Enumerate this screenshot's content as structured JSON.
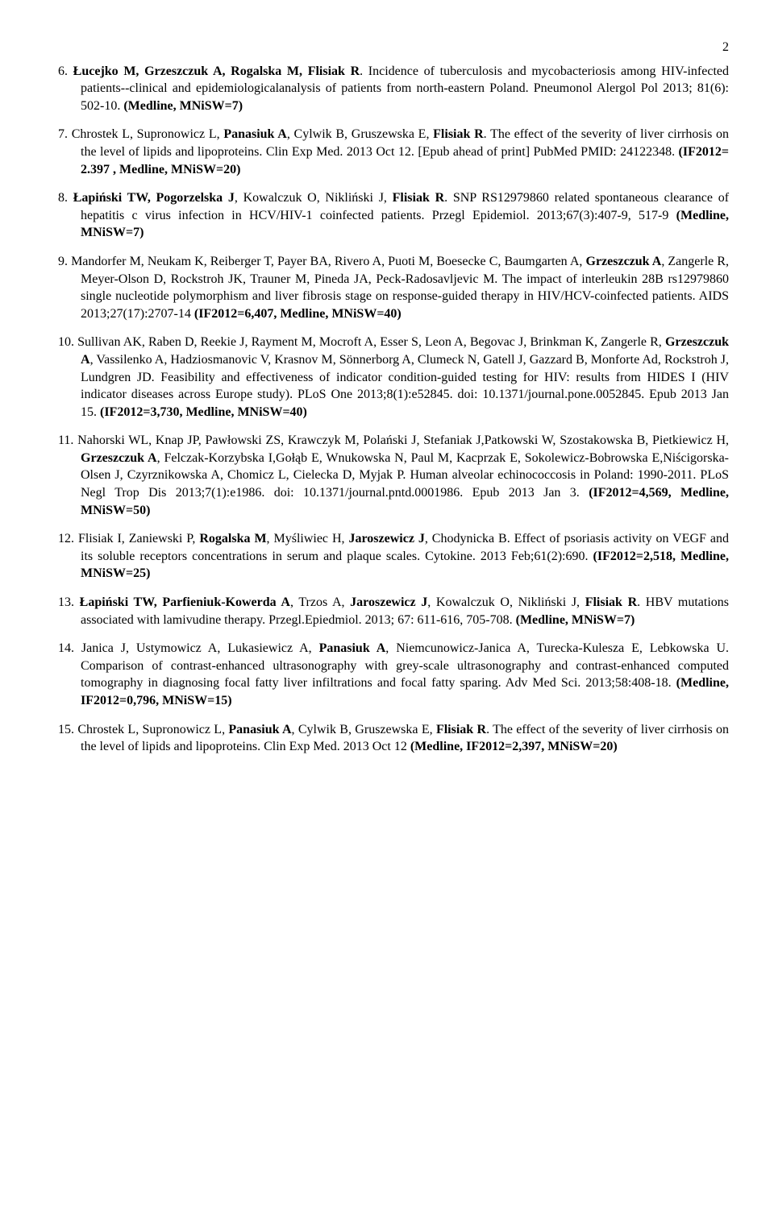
{
  "page_number": "2",
  "references": [
    {
      "num": "6.",
      "segments": [
        {
          "t": "Łucejko M, Grzeszczuk A, Rogalska M, Flisiak R",
          "b": true
        },
        {
          "t": ". Incidence of tuberculosis and mycobacteriosis among HIV-infected patients--clinical and epidemiologicalanalysis of patients from north-eastern Poland. Pneumonol Alergol Pol 2013; 81(6): 502-10. "
        },
        {
          "t": "(Medline, MNiSW=7)",
          "b": true
        }
      ]
    },
    {
      "num": "7.",
      "segments": [
        {
          "t": "Chrostek L, Supronowicz L, "
        },
        {
          "t": "Panasiuk A",
          "b": true
        },
        {
          "t": ", Cylwik B, Gruszewska E, "
        },
        {
          "t": "Flisiak R",
          "b": true
        },
        {
          "t": ". The effect of the severity of liver cirrhosis on the level of lipids and lipoproteins. Clin Exp Med. 2013 Oct 12. [Epub ahead of print] PubMed PMID: 24122348. "
        },
        {
          "t": "(IF2012= 2.397 , Medline, MNiSW=20)",
          "b": true
        }
      ]
    },
    {
      "num": "8.",
      "segments": [
        {
          "t": "Łapiński TW, Pogorzelska J",
          "b": true
        },
        {
          "t": ", Kowalczuk O, Nikliński J, "
        },
        {
          "t": "Flisiak R",
          "b": true
        },
        {
          "t": ". SNP RS12979860 related spontaneous clearance of hepatitis c virus infection in HCV/HIV-1 coinfected patients. Przegl Epidemiol. 2013;67(3):407-9, 517-9 "
        },
        {
          "t": "(Medline, MNiSW=7)",
          "b": true
        }
      ]
    },
    {
      "num": "9.",
      "segments": [
        {
          "t": "Mandorfer M, Neukam K, Reiberger T, Payer BA, Rivero A, Puoti M, Boesecke C, Baumgarten A, "
        },
        {
          "t": "Grzeszczuk A",
          "b": true
        },
        {
          "t": ", Zangerle R, Meyer-Olson D, Rockstroh JK, Trauner M, Pineda JA, Peck-Radosavljevic M. The impact of interleukin 28B rs12979860 single nucleotide polymorphism and liver fibrosis stage on response-guided therapy in HIV/HCV-coinfected patients. AIDS 2013;27(17):2707-14 "
        },
        {
          "t": "(IF2012=6,407, Medline, MNiSW=40)",
          "b": true
        }
      ]
    },
    {
      "num": "10.",
      "segments": [
        {
          "t": "Sullivan AK, Raben D, Reekie J, Rayment M, Mocroft A, Esser S, Leon A, Begovac J, Brinkman K, Zangerle R, "
        },
        {
          "t": "Grzeszczuk A",
          "b": true
        },
        {
          "t": ", Vassilenko A, Hadziosmanovic V, Krasnov M, Sönnerborg A, Clumeck N, Gatell J, Gazzard B, Monforte Ad, Rockstroh J, Lundgren JD. Feasibility and effectiveness of indicator condition-guided testing for HIV: results from HIDES I (HIV indicator diseases across Europe study). PLoS One 2013;8(1):e52845. doi: 10.1371/journal.pone.0052845. Epub 2013 Jan 15. "
        },
        {
          "t": "(IF2012=3,730, Medline, MNiSW=40)",
          "b": true
        }
      ]
    },
    {
      "num": "11.",
      "segments": [
        {
          "t": "Nahorski WL, Knap JP, Pawłowski ZS, Krawczyk M, Polański J, Stefaniak J,Patkowski W, Szostakowska B, Pietkiewicz H, "
        },
        {
          "t": "Grzeszczuk A",
          "b": true
        },
        {
          "t": ", Felczak-Korzybska I,Gołąb E, Wnukowska N, Paul M, Kacprzak E, Sokolewicz-Bobrowska E,Niścigorska-Olsen J, Czyrznikowska A, Chomicz L, Cielecka D, Myjak P. Human alveolar echinococcosis in Poland: 1990-2011. PLoS Negl Trop Dis 2013;7(1):e1986. doi: 10.1371/journal.pntd.0001986. Epub 2013 Jan 3. "
        },
        {
          "t": "(IF2012=4,569, Medline, MNiSW=50)",
          "b": true
        }
      ]
    },
    {
      "num": "12.",
      "segments": [
        {
          "t": "Flisiak I, Zaniewski P, "
        },
        {
          "t": "Rogalska M",
          "b": true
        },
        {
          "t": ", Myśliwiec H, "
        },
        {
          "t": "Jaroszewicz J",
          "b": true
        },
        {
          "t": ", Chodynicka B. Effect of psoriasis activity on VEGF and its soluble receptors concentrations in serum and plaque scales. Cytokine. 2013 Feb;61(2):690. "
        },
        {
          "t": "(IF2012=2,518, Medline, MNiSW=25)",
          "b": true
        }
      ]
    },
    {
      "num": "13.",
      "segments": [
        {
          "t": "Łapiński TW, Parfieniuk-Kowerda A",
          "b": true
        },
        {
          "t": ", Trzos A, "
        },
        {
          "t": "Jaroszewicz J",
          "b": true
        },
        {
          "t": ", Kowalczuk O, Nikliński J, "
        },
        {
          "t": "Flisiak R",
          "b": true
        },
        {
          "t": ". HBV mutations associated with lamivudine therapy. Przegl.Epiedmiol. 2013; 67: 611-616, 705-708. "
        },
        {
          "t": "(Medline, MNiSW=7)",
          "b": true
        }
      ]
    },
    {
      "num": "14.",
      "segments": [
        {
          "t": "Janica J, Ustymowicz A, Lukasiewicz A, "
        },
        {
          "t": "Panasiuk A",
          "b": true
        },
        {
          "t": ", Niemcunowicz-Janica A, Turecka-Kulesza E, Lebkowska U. Comparison of contrast-enhanced ultrasonography with grey-scale ultrasonography and contrast-enhanced computed tomography in diagnosing focal fatty liver infiltrations and focal fatty sparing. Adv Med Sci. 2013;58:408-18. "
        },
        {
          "t": "(Medline, IF2012=0,796, MNiSW=15)",
          "b": true
        }
      ]
    },
    {
      "num": "15.",
      "segments": [
        {
          "t": "Chrostek L, Supronowicz L, "
        },
        {
          "t": "Panasiuk A",
          "b": true
        },
        {
          "t": ", Cylwik B, Gruszewska E, "
        },
        {
          "t": "Flisiak R",
          "b": true
        },
        {
          "t": ". The effect of the severity of liver cirrhosis on the level of lipids and lipoproteins. Clin Exp Med. 2013 Oct 12 "
        },
        {
          "t": "(Medline, IF2012=2,397, MNiSW=20)",
          "b": true
        }
      ]
    }
  ]
}
